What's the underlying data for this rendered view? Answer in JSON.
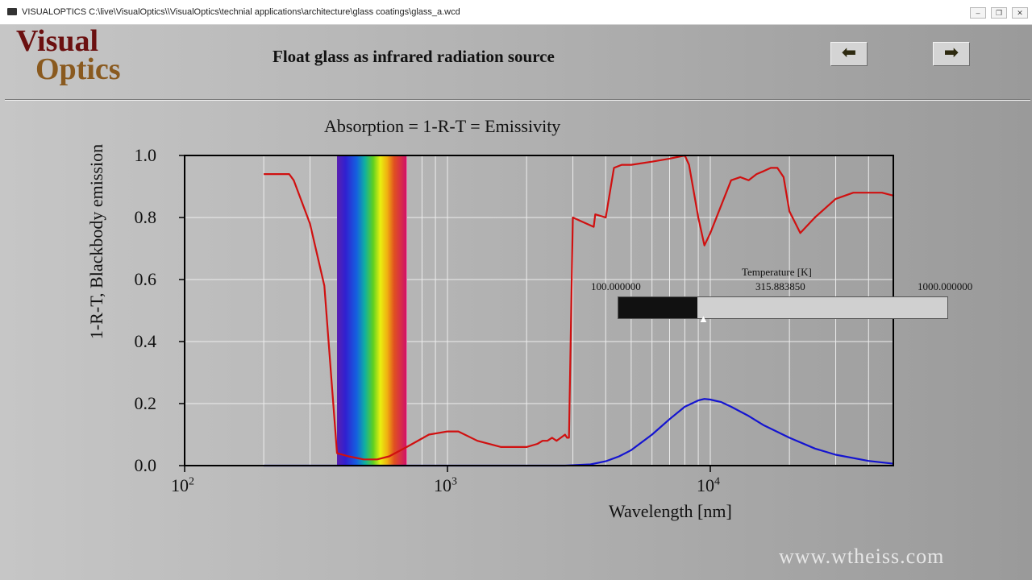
{
  "window": {
    "title": "VISUALOPTICS C:\\live\\VisualOptics\\\\VisualOptics\\technial applications\\architecture\\glass coatings\\glass_a.wcd",
    "min_label": "–",
    "restore_label": "❐",
    "close_label": "✕"
  },
  "logo": {
    "line1": "Visual",
    "line2": "Optics"
  },
  "header": {
    "slide_title": "Float glass as infrared radiation source"
  },
  "nav": {
    "prev_label": "⬅",
    "next_label": "➡"
  },
  "slider": {
    "title": "Temperature [K]",
    "min_label": "100.000000",
    "value_label": "315.883850",
    "max_label": "1000.000000",
    "min": 100,
    "max": 1000,
    "value": 315.88385
  },
  "watermark": "www.wtheiss.com",
  "chart_data": {
    "type": "line",
    "title": "Absorption = 1-R-T = Emissivity",
    "xlabel": "Wavelength [nm]",
    "ylabel": "1-R-T, Blackbody emission",
    "xscale": "log",
    "xlim": [
      100,
      50000
    ],
    "ylim": [
      0,
      1
    ],
    "grid": true,
    "yticks": [
      "0.0",
      "0.2",
      "0.4",
      "0.6",
      "0.8",
      "1.0"
    ],
    "xticks": [
      {
        "value": 100,
        "base": "10",
        "exp": "2"
      },
      {
        "value": 1000,
        "base": "10",
        "exp": "3"
      },
      {
        "value": 10000,
        "base": "10",
        "exp": "4"
      }
    ],
    "visible_band": [
      380,
      700
    ],
    "series": [
      {
        "color": "#d01010",
        "x": [
          200,
          250,
          260,
          300,
          340,
          380,
          420,
          480,
          540,
          600,
          700,
          850,
          1000,
          1100,
          1300,
          1600,
          2000,
          2200,
          2300,
          2400,
          2500,
          2600,
          2700,
          2800,
          2850,
          2900,
          3000,
          3600,
          3650,
          4000,
          4300,
          4600,
          5000,
          6000,
          7000,
          8000,
          8300,
          9000,
          9500,
          10000,
          12000,
          13000,
          14000,
          15000,
          16000,
          17000,
          18000,
          19000,
          20000,
          22000,
          25000,
          30000,
          35000,
          40000,
          45000,
          50000
        ],
        "y": [
          0.94,
          0.94,
          0.92,
          0.78,
          0.58,
          0.04,
          0.03,
          0.02,
          0.02,
          0.03,
          0.06,
          0.1,
          0.11,
          0.11,
          0.08,
          0.06,
          0.06,
          0.07,
          0.08,
          0.08,
          0.09,
          0.08,
          0.09,
          0.1,
          0.09,
          0.09,
          0.8,
          0.77,
          0.81,
          0.8,
          0.96,
          0.97,
          0.97,
          0.98,
          0.99,
          1.0,
          0.97,
          0.8,
          0.71,
          0.75,
          0.92,
          0.93,
          0.92,
          0.94,
          0.95,
          0.96,
          0.96,
          0.93,
          0.82,
          0.75,
          0.8,
          0.86,
          0.88,
          0.88,
          0.88,
          0.87
        ]
      },
      {
        "color": "#1414d0",
        "x": [
          200,
          1000,
          2000,
          2800,
          3500,
          4000,
          4500,
          5000,
          6000,
          7000,
          8000,
          9000,
          9500,
          10000,
          11000,
          12000,
          14000,
          16000,
          20000,
          25000,
          30000,
          40000,
          50000
        ],
        "y": [
          0,
          0,
          0,
          0,
          0.004,
          0.014,
          0.03,
          0.05,
          0.1,
          0.15,
          0.19,
          0.21,
          0.215,
          0.213,
          0.205,
          0.19,
          0.16,
          0.13,
          0.09,
          0.055,
          0.035,
          0.015,
          0.006
        ]
      }
    ]
  }
}
